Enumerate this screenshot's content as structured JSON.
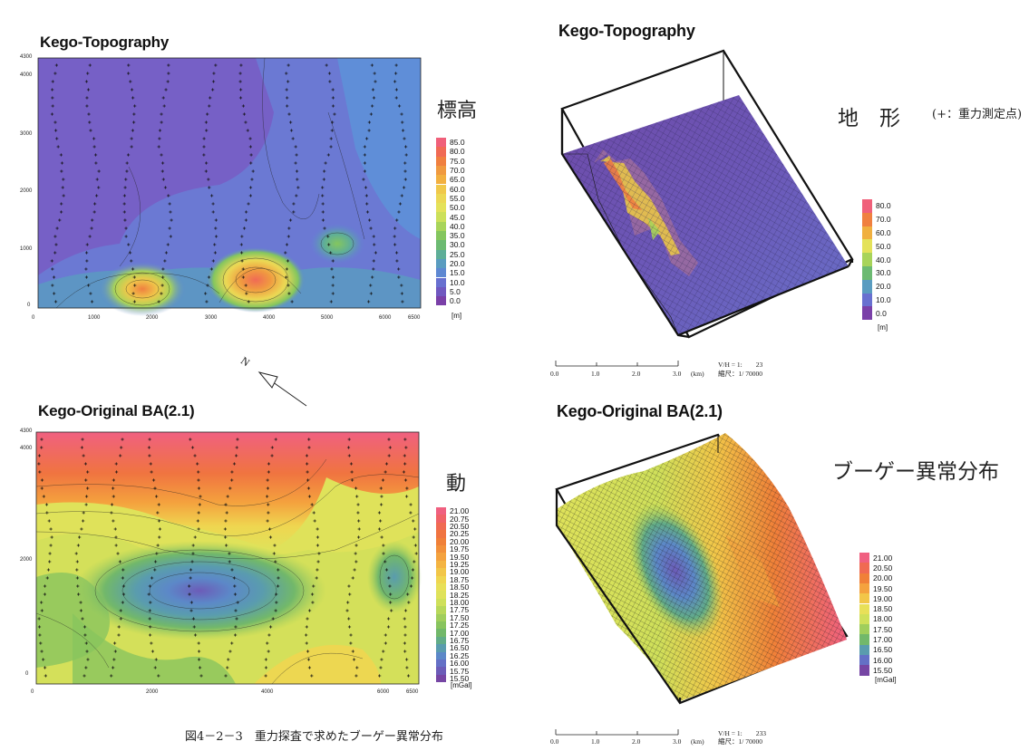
{
  "figure_caption": "図4－2－3　重力探査で求めたブーゲー異常分布",
  "north_arrow": "N",
  "topo_map": {
    "title": "Kego-Topography",
    "side_label": "標高",
    "x_ticks": [
      "0",
      "1000",
      "2000",
      "3000",
      "4000",
      "5000",
      "6000",
      "6500"
    ],
    "y_ticks": [
      "4300",
      "4000",
      "3000",
      "2000",
      "1000",
      "0"
    ],
    "colorbar": [
      "85.0",
      "80.0",
      "75.0",
      "70.0",
      "65.0",
      "60.0",
      "55.0",
      "50.0",
      "45.0",
      "40.0",
      "35.0",
      "30.0",
      "25.0",
      "20.0",
      "15.0",
      "10.0",
      "5.0",
      "0.0"
    ],
    "colorbar_colors": [
      "#f0607a",
      "#f06a55",
      "#f08040",
      "#f09a40",
      "#f2b040",
      "#f0c84a",
      "#ecd854",
      "#e4e25a",
      "#cce05a",
      "#a8d45a",
      "#84c65e",
      "#6cba72",
      "#5eae98",
      "#5a9cc0",
      "#5e88d2",
      "#6870d0",
      "#7058c0",
      "#7a40a8"
    ],
    "unit": "[m]"
  },
  "ba_map": {
    "title": "Kego-Original BA(2.1)",
    "side_label": "動",
    "x_ticks": [
      "0",
      "2000",
      "4000",
      "6000",
      "6500"
    ],
    "y_ticks": [
      "4300",
      "4000",
      "2000",
      "0"
    ],
    "colorbar": [
      "21.00",
      "20.75",
      "20.50",
      "20.25",
      "20.00",
      "19.75",
      "19.50",
      "19.25",
      "19.00",
      "18.75",
      "18.50",
      "18.25",
      "18.00",
      "17.75",
      "17.50",
      "17.25",
      "17.00",
      "16.75",
      "16.50",
      "16.25",
      "16.00",
      "15.75",
      "15.50"
    ],
    "colorbar_colors": [
      "#f06080",
      "#f06268",
      "#f06a52",
      "#f07440",
      "#f08038",
      "#f2903a",
      "#f4a23e",
      "#f4b442",
      "#f2c648",
      "#efd650",
      "#e8e058",
      "#dfe25a",
      "#cfe05a",
      "#b8d85a",
      "#a0ce5c",
      "#88c45e",
      "#72b86a",
      "#62ac88",
      "#5a9cae",
      "#5c88c8",
      "#6470c6",
      "#6c5cb8",
      "#7646a4"
    ],
    "unit": "[mGal]"
  },
  "topo_3d": {
    "title": "Kego-Topography",
    "side_label": "地　形",
    "side_note": "(+：重力測定点)",
    "colorbar": [
      "80.0",
      "70.0",
      "60.0",
      "50.0",
      "40.0",
      "30.0",
      "20.0",
      "10.0",
      "0.0"
    ],
    "colorbar_colors": [
      "#f0607a",
      "#f08040",
      "#f0b040",
      "#e4e25a",
      "#a8d45a",
      "#6cba72",
      "#5a9cc0",
      "#6870d0",
      "#7a40a8"
    ],
    "unit": "[m]",
    "scale_ticks": [
      "0.0",
      "1.0",
      "2.0",
      "3.0"
    ],
    "scale_unit": "(km)",
    "vh_ratio": "V/H = 1:　　23",
    "reduction": "縮尺：1/ 70000"
  },
  "ba_3d": {
    "title": "Kego-Original BA(2.1)",
    "side_label": "ブーゲー異常分布",
    "colorbar": [
      "21.00",
      "20.50",
      "20.00",
      "19.50",
      "19.00",
      "18.50",
      "18.00",
      "17.50",
      "17.00",
      "16.50",
      "16.00",
      "15.50"
    ],
    "colorbar_colors": [
      "#f06080",
      "#f06a52",
      "#f08038",
      "#f4a23e",
      "#f2c648",
      "#e8e058",
      "#cfe05a",
      "#a0ce5c",
      "#72b86a",
      "#5a9cae",
      "#6470c6",
      "#7646a4"
    ],
    "unit": "[mGal]",
    "scale_ticks": [
      "0.0",
      "1.0",
      "2.0",
      "3.0"
    ],
    "scale_unit": "(km)",
    "vh_ratio": "V/H = 1:　　233",
    "reduction": "縮尺：1/ 70000"
  },
  "chart_data": [
    {
      "type": "heatmap",
      "title": "Kego-Topography",
      "xlabel": "",
      "ylabel": "",
      "xlim": [
        0,
        6500
      ],
      "ylim": [
        0,
        4300
      ],
      "colorbar_unit": "[m]",
      "value_range": [
        0,
        85
      ],
      "highs": [
        {
          "x": 1900,
          "y": 200,
          "value": 60
        },
        {
          "x": 3800,
          "y": 300,
          "value": 70
        },
        {
          "x": 5200,
          "y": 1100,
          "value": 40
        }
      ]
    },
    {
      "type": "heatmap",
      "title": "Kego-Original BA(2.1)",
      "xlabel": "",
      "ylabel": "",
      "xlim": [
        0,
        6500
      ],
      "ylim": [
        0,
        4300
      ],
      "colorbar_unit": "[mGal]",
      "value_range": [
        15.5,
        21.0
      ],
      "lows": [
        {
          "x": 2800,
          "y": 1450,
          "value": 15.8
        }
      ],
      "highs": [
        {
          "x": 2600,
          "y": 4100,
          "value": 21.0
        }
      ]
    }
  ]
}
